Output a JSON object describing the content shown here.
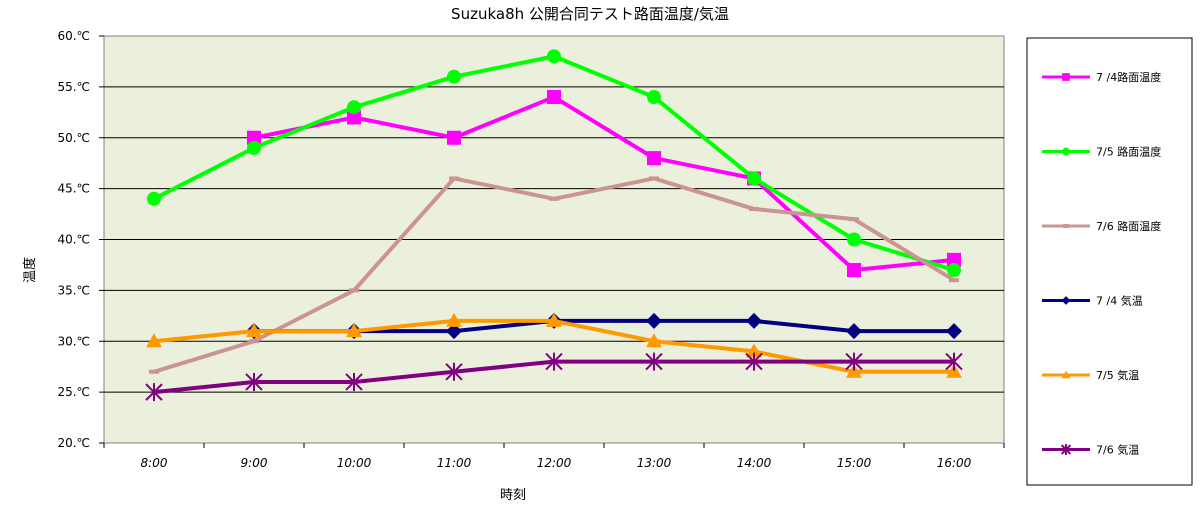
{
  "chart_data": {
    "type": "line",
    "title": "Suzuka8h 公開合同テスト路面温度/気温",
    "xlabel": "時刻",
    "ylabel": "温度",
    "categories": [
      "8:00",
      "9:00",
      "10:00",
      "11:00",
      "12:00",
      "13:00",
      "14:00",
      "15:00",
      "16:00"
    ],
    "ylim": [
      20,
      60
    ],
    "yticks": [
      "20.℃",
      "25.℃",
      "30.℃",
      "35.℃",
      "40.℃",
      "45.℃",
      "50.℃",
      "55.℃",
      "60.℃"
    ],
    "ytick_values": [
      20,
      25,
      30,
      35,
      40,
      45,
      50,
      55,
      60
    ],
    "grid": true,
    "legend_position": "right",
    "series": [
      {
        "name": "7 /4路面温度",
        "color": "#ff00ff",
        "marker": "square",
        "values": [
          null,
          50,
          52,
          50,
          54,
          48,
          46,
          37,
          38
        ]
      },
      {
        "name": "7/5 路面温度",
        "color": "#00ff00",
        "marker": "circle",
        "values": [
          44,
          49,
          53,
          56,
          58,
          54,
          46,
          40,
          37
        ]
      },
      {
        "name": "7/6 路面温度",
        "color": "#cc9393",
        "marker": "dash",
        "values": [
          27,
          30,
          35,
          46,
          44,
          46,
          43,
          42,
          36
        ]
      },
      {
        "name": "7 /4 気温",
        "color": "#000080",
        "marker": "diamond",
        "values": [
          null,
          31,
          31,
          31,
          32,
          32,
          32,
          31,
          31
        ]
      },
      {
        "name": "7/5 気温",
        "color": "#ff9900",
        "marker": "triangle",
        "values": [
          30,
          31,
          31,
          32,
          32,
          30,
          29,
          27,
          27
        ]
      },
      {
        "name": "7/6 気温",
        "color": "#800080",
        "marker": "star",
        "values": [
          25,
          26,
          26,
          27,
          28,
          28,
          28,
          28,
          28
        ]
      }
    ]
  }
}
